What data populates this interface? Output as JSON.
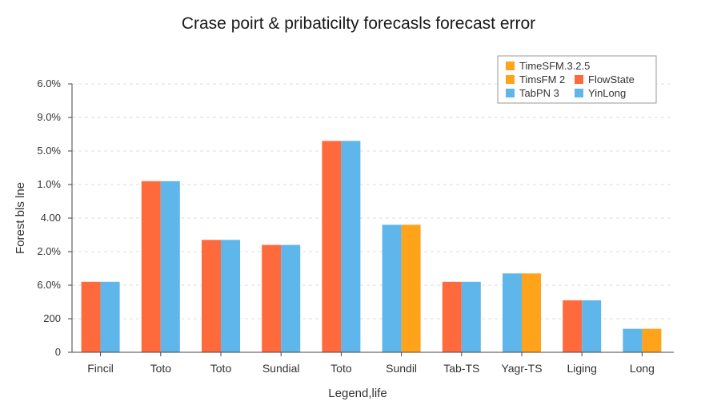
{
  "chart_data": {
    "type": "bar",
    "title": "Crase poirt & pribaticilty forecasls forecast error",
    "xlabel": "Legend,life",
    "ylabel": "Forest bls lne",
    "y_tick_labels": [
      "0",
      "200",
      "6.0%",
      "2.0%",
      "4.00",
      "1.0%",
      "5.0%",
      "9.0%",
      "6.0%"
    ],
    "ylim": [
      0,
      8
    ],
    "grid": "horizontal dashed",
    "legend_position": "top-right",
    "categories": [
      "Fincil",
      "Toto",
      "Toto",
      "Sundial",
      "Toto",
      "Sundil",
      "Tab-TS",
      "Yagr-TS",
      "Liging",
      "Long"
    ],
    "bars": [
      [
        {
          "color": "#ff6a3d",
          "value": 2.1
        },
        {
          "color": "#5eb6ea",
          "value": 2.1
        }
      ],
      [
        {
          "color": "#ff6a3d",
          "value": 5.1
        },
        {
          "color": "#5eb6ea",
          "value": 5.1
        }
      ],
      [
        {
          "color": "#ff6a3d",
          "value": 3.35
        },
        {
          "color": "#5eb6ea",
          "value": 3.35
        }
      ],
      [
        {
          "color": "#ff6a3d",
          "value": 3.2
        },
        {
          "color": "#5eb6ea",
          "value": 3.2
        }
      ],
      [
        {
          "color": "#ff6a3d",
          "value": 6.3
        },
        {
          "color": "#5eb6ea",
          "value": 6.3
        }
      ],
      [
        {
          "color": "#5eb6ea",
          "value": 3.8
        },
        {
          "color": "#ffa31a",
          "value": 3.8
        }
      ],
      [
        {
          "color": "#ff6a3d",
          "value": 2.1
        },
        {
          "color": "#5eb6ea",
          "value": 2.1
        }
      ],
      [
        {
          "color": "#5eb6ea",
          "value": 2.35
        },
        {
          "color": "#ffa31a",
          "value": 2.35
        }
      ],
      [
        {
          "color": "#ff6a3d",
          "value": 1.55
        },
        {
          "color": "#5eb6ea",
          "value": 1.55
        }
      ],
      [
        {
          "color": "#5eb6ea",
          "value": 0.7
        },
        {
          "color": "#ffa31a",
          "value": 0.7
        }
      ]
    ],
    "legend": [
      {
        "label": "TimeSFM.3.2.5",
        "color": "#ffa31a"
      },
      {
        "label": "TimsFM 2",
        "color": "#ffa31a"
      },
      {
        "label": "FlowState",
        "color": "#ff6a3d"
      },
      {
        "label": "TabPN 3",
        "color": "#5eb6ea"
      },
      {
        "label": "YinLong",
        "color": "#5eb6ea"
      }
    ]
  }
}
